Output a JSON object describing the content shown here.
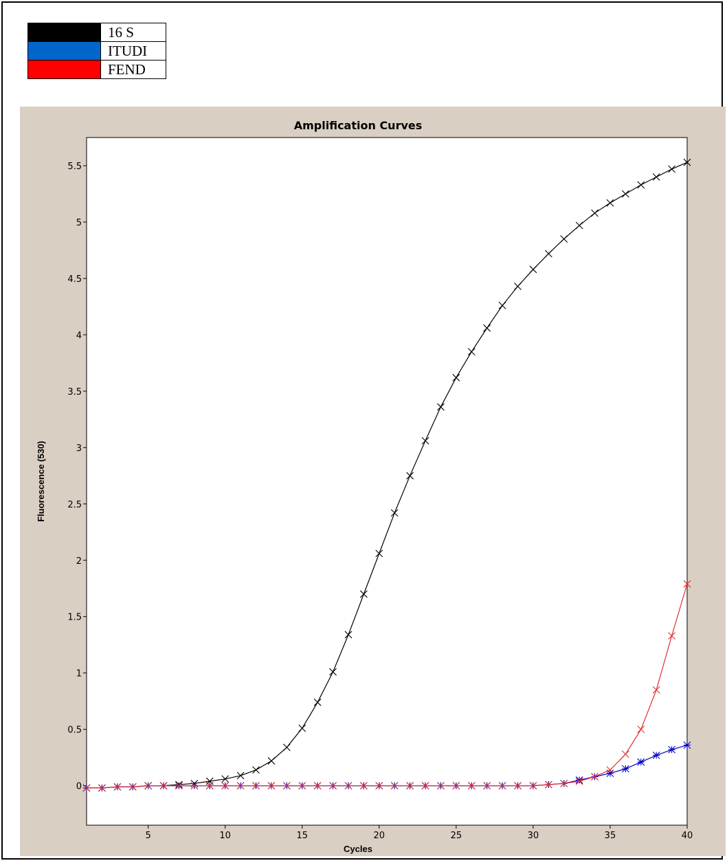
{
  "legend": {
    "items": [
      {
        "label": "16 S",
        "color": "#000000"
      },
      {
        "label": "ITUDI",
        "color": "#0066cc"
      },
      {
        "label": "FEND",
        "color": "#ff0000"
      }
    ]
  },
  "chart_data": {
    "type": "line",
    "title": "Amplification Curves",
    "xlabel": "Cycles",
    "ylabel": "Fluorescence (530)",
    "xlim": [
      1,
      40
    ],
    "ylim": [
      -0.35,
      5.75
    ],
    "xticks": [
      5,
      10,
      15,
      20,
      25,
      30,
      35,
      40
    ],
    "yticks": [
      0,
      0.5,
      1,
      1.5,
      2,
      2.5,
      3,
      3.5,
      4,
      4.5,
      5,
      5.5
    ],
    "grid": false,
    "series": [
      {
        "name": "16 S",
        "color": "#000000",
        "marker": "x",
        "x": [
          1,
          2,
          3,
          4,
          5,
          6,
          7,
          8,
          9,
          10,
          11,
          12,
          13,
          14,
          15,
          16,
          17,
          18,
          19,
          20,
          21,
          22,
          23,
          24,
          25,
          26,
          27,
          28,
          29,
          30,
          31,
          32,
          33,
          34,
          35,
          36,
          37,
          38,
          39,
          40
        ],
        "y": [
          -0.02,
          -0.02,
          -0.01,
          -0.01,
          0.0,
          0.0,
          0.01,
          0.02,
          0.04,
          0.06,
          0.09,
          0.14,
          0.22,
          0.34,
          0.51,
          0.74,
          1.01,
          1.34,
          1.7,
          2.06,
          2.42,
          2.75,
          3.06,
          3.36,
          3.62,
          3.85,
          4.06,
          4.26,
          4.43,
          4.58,
          4.72,
          4.85,
          4.97,
          5.08,
          5.17,
          5.25,
          5.33,
          5.4,
          5.47,
          5.53
        ]
      },
      {
        "name": "ITUDI",
        "color": "#0000cc",
        "marker": "*",
        "x": [
          1,
          2,
          3,
          4,
          5,
          6,
          7,
          8,
          9,
          10,
          11,
          12,
          13,
          14,
          15,
          16,
          17,
          18,
          19,
          20,
          21,
          22,
          23,
          24,
          25,
          26,
          27,
          28,
          29,
          30,
          31,
          32,
          33,
          34,
          35,
          36,
          37,
          38,
          39,
          40
        ],
        "y": [
          -0.02,
          -0.02,
          -0.01,
          -0.01,
          0.0,
          0.0,
          0.0,
          0.0,
          0.0,
          0.0,
          0.0,
          0.0,
          0.0,
          0.0,
          0.0,
          0.0,
          0.0,
          0.0,
          0.0,
          0.0,
          0.0,
          0.0,
          0.0,
          0.0,
          0.0,
          0.0,
          0.0,
          0.0,
          0.0,
          0.0,
          0.01,
          0.02,
          0.05,
          0.08,
          0.11,
          0.15,
          0.21,
          0.27,
          0.32,
          0.36
        ]
      },
      {
        "name": "FEND",
        "color": "#e03030",
        "marker": "x",
        "x": [
          1,
          2,
          3,
          4,
          5,
          6,
          7,
          8,
          9,
          10,
          11,
          12,
          13,
          14,
          15,
          16,
          17,
          18,
          19,
          20,
          21,
          22,
          23,
          24,
          25,
          26,
          27,
          28,
          29,
          30,
          31,
          32,
          33,
          34,
          35,
          36,
          37,
          38,
          39,
          40
        ],
        "y": [
          -0.02,
          -0.02,
          -0.01,
          -0.01,
          0.0,
          0.0,
          0.0,
          0.0,
          0.0,
          0.0,
          0.0,
          0.0,
          0.0,
          0.0,
          0.0,
          0.0,
          0.0,
          0.0,
          0.0,
          0.0,
          0.0,
          0.0,
          0.0,
          0.0,
          0.0,
          0.0,
          0.0,
          0.0,
          0.0,
          0.0,
          0.01,
          0.02,
          0.04,
          0.08,
          0.14,
          0.28,
          0.5,
          0.85,
          1.33,
          1.79
        ]
      }
    ]
  }
}
